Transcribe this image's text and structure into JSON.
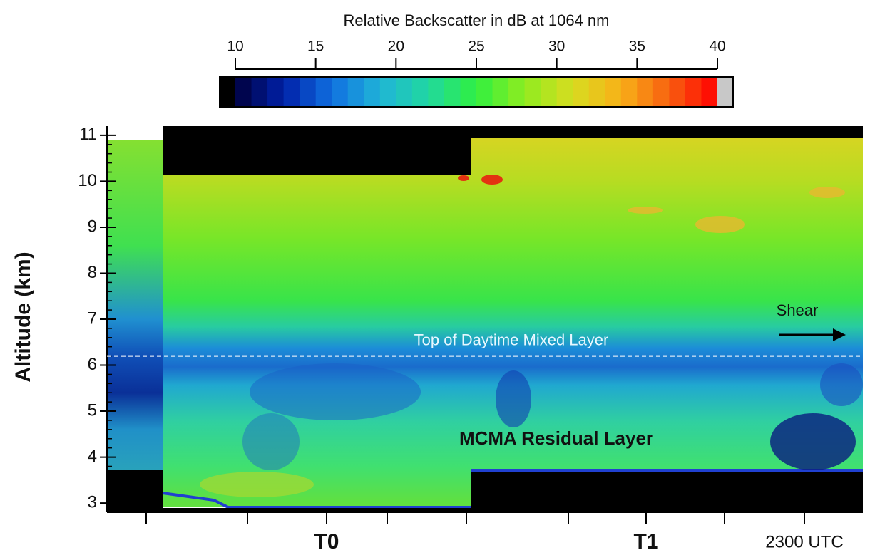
{
  "chart_data": {
    "type": "curtain",
    "colorbar": {
      "title": "Relative Backscatter in dB at 1064 nm",
      "lim": [
        10,
        40
      ],
      "ticks": [
        10,
        15,
        20,
        25,
        30,
        35,
        40
      ],
      "colors": [
        "#00003c",
        "#0020a8",
        "#1070e0",
        "#20b4d8",
        "#20d8a0",
        "#30f040",
        "#90ec20",
        "#d8dc20",
        "#f8b018",
        "#f86010",
        "#ff0000"
      ]
    },
    "ylabel": "Altitude (km)",
    "ylim": [
      2.8,
      11.2
    ],
    "yticks": [
      3,
      4,
      5,
      6,
      7,
      8,
      9,
      10,
      11
    ],
    "x_tick_labels": [
      "T0",
      "T1",
      "2300 UTC"
    ],
    "annotations": {
      "mixed_layer": {
        "text": "Top of Daytime Mixed Layer",
        "altitude": 6.2
      },
      "shear": "Shear",
      "residual_layer": "MCMA Residual Layer"
    }
  }
}
